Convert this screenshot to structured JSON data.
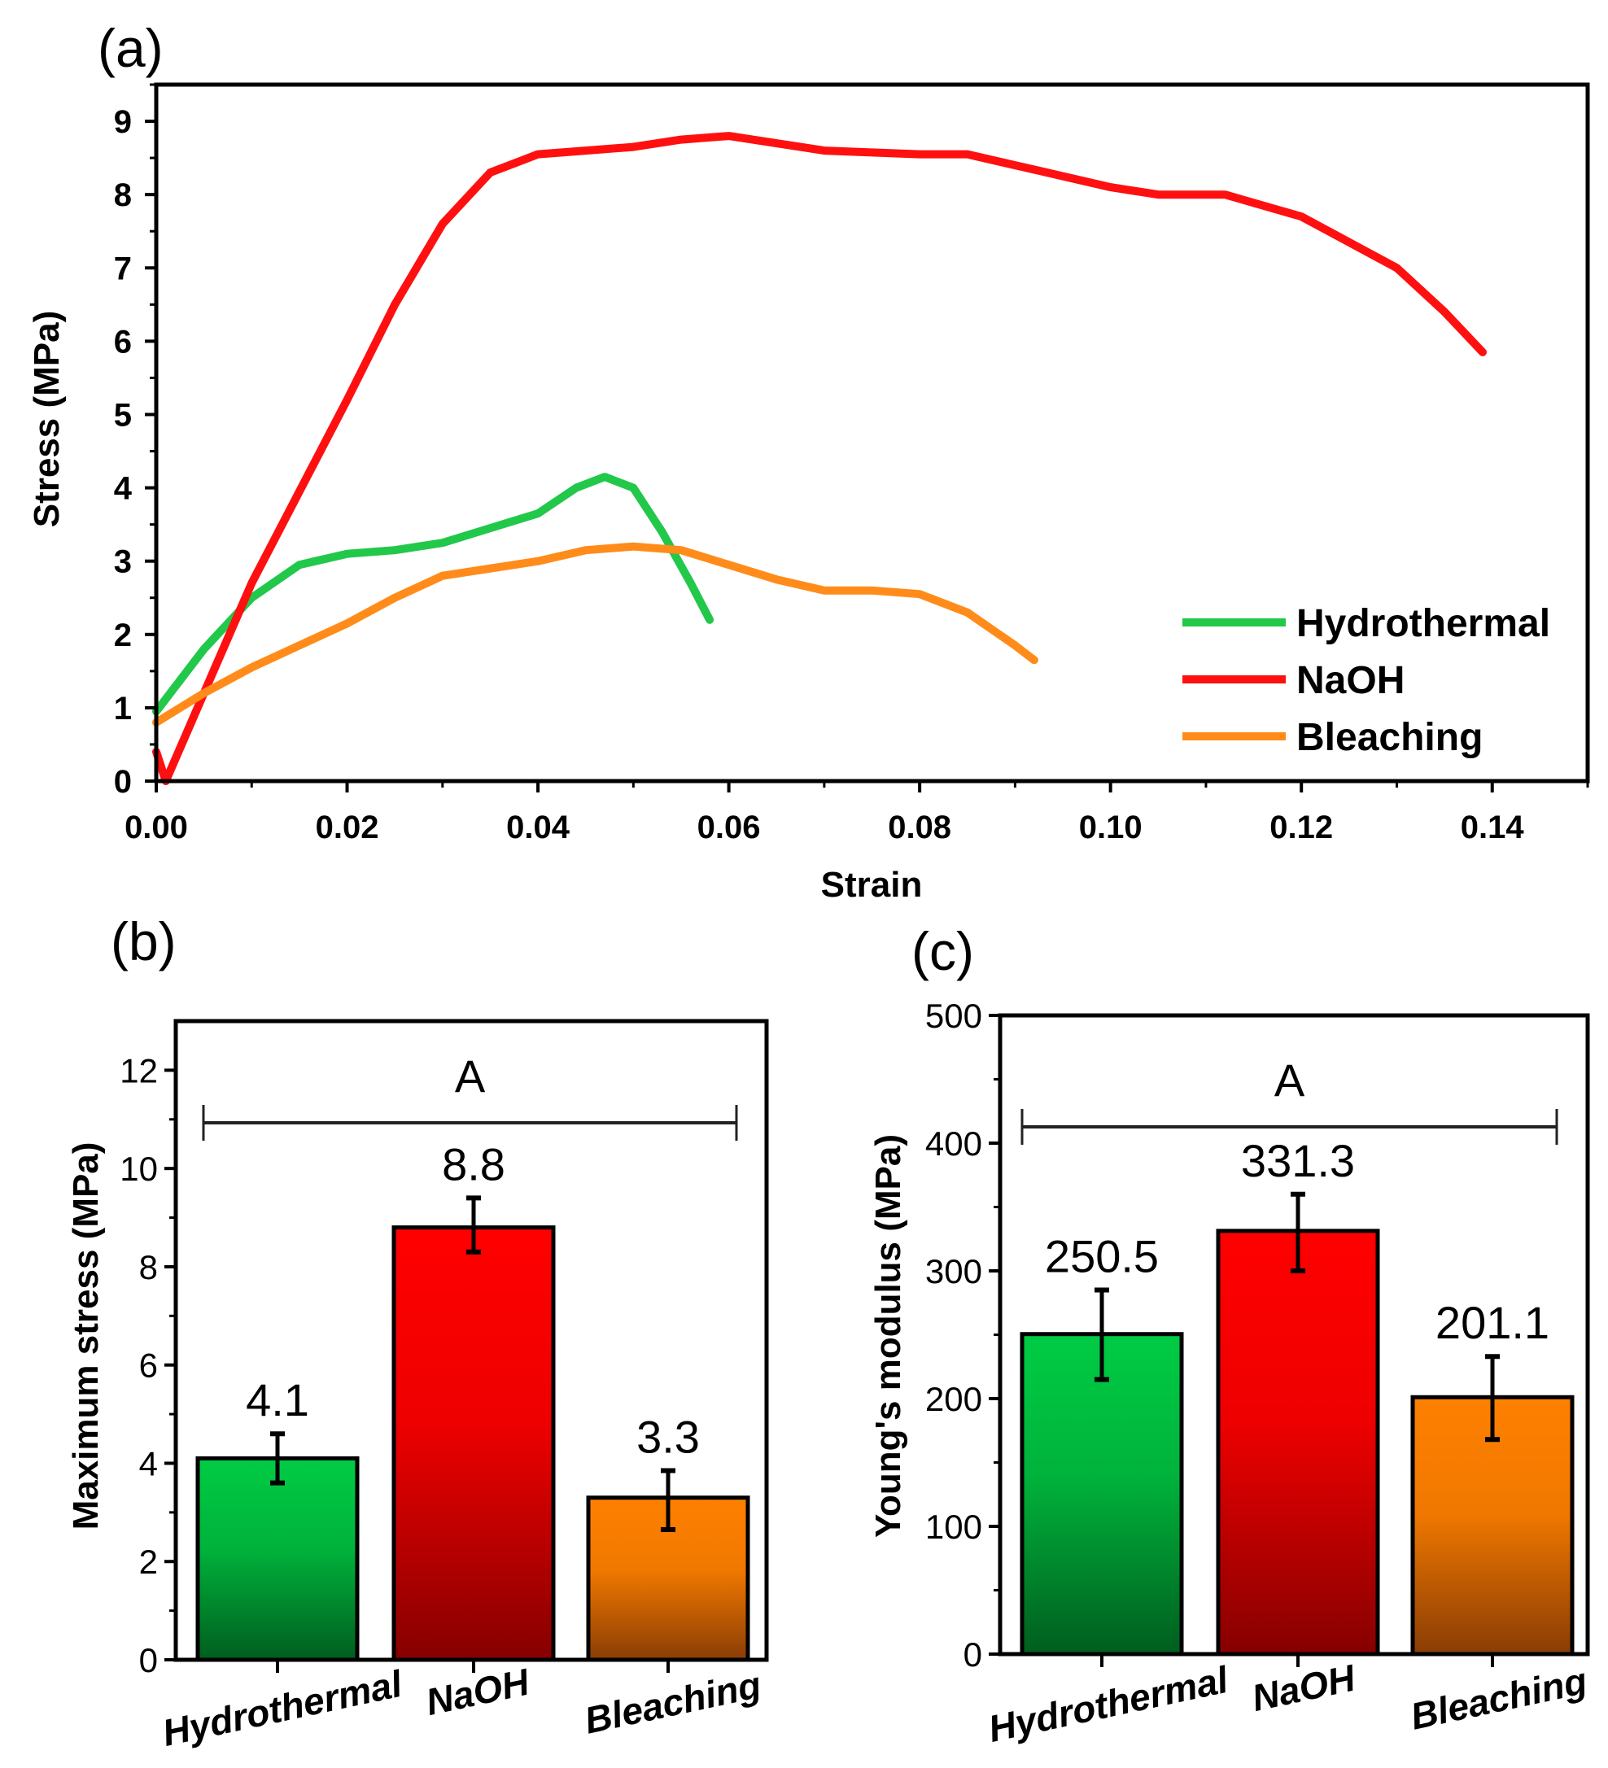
{
  "chart_data": [
    {
      "panel": "(a)",
      "type": "line",
      "title": "",
      "xlabel": "Strain",
      "ylabel": "Stress (MPa)",
      "xlim": [
        0,
        0.15
      ],
      "ylim": [
        0,
        9.5
      ],
      "xticks": [
        "0.00",
        "0.02",
        "0.04",
        "0.06",
        "0.08",
        "0.10",
        "0.12",
        "0.14"
      ],
      "yticks": [
        "0",
        "1",
        "2",
        "3",
        "4",
        "5",
        "6",
        "7",
        "8",
        "9"
      ],
      "legend_position": "bottom-right",
      "grid": false,
      "series": [
        {
          "name": "Hydrothermal",
          "color": "#22c84a",
          "x": [
            0,
            0.005,
            0.01,
            0.015,
            0.02,
            0.025,
            0.03,
            0.035,
            0.04,
            0.044,
            0.047,
            0.05,
            0.053,
            0.056,
            0.058
          ],
          "y": [
            0.95,
            1.8,
            2.5,
            2.95,
            3.1,
            3.15,
            3.25,
            3.45,
            3.65,
            4.0,
            4.15,
            4.0,
            3.4,
            2.7,
            2.2
          ]
        },
        {
          "name": "NaOH",
          "color": "#ff1010",
          "x": [
            0,
            0.001,
            0.01,
            0.02,
            0.025,
            0.03,
            0.035,
            0.04,
            0.045,
            0.05,
            0.055,
            0.06,
            0.065,
            0.07,
            0.08,
            0.085,
            0.09,
            0.1,
            0.105,
            0.112,
            0.12,
            0.13,
            0.135,
            0.139
          ],
          "y": [
            0.4,
            0,
            2.7,
            5.2,
            6.5,
            7.6,
            8.3,
            8.55,
            8.6,
            8.65,
            8.75,
            8.8,
            8.7,
            8.6,
            8.55,
            8.55,
            8.4,
            8.1,
            8.0,
            8.0,
            7.7,
            7.0,
            6.4,
            5.85
          ]
        },
        {
          "name": "Bleaching",
          "color": "#ff8c1a",
          "x": [
            0,
            0.005,
            0.01,
            0.02,
            0.025,
            0.03,
            0.035,
            0.04,
            0.045,
            0.05,
            0.055,
            0.06,
            0.065,
            0.07,
            0.075,
            0.08,
            0.085,
            0.09,
            0.092
          ],
          "y": [
            0.8,
            1.2,
            1.55,
            2.15,
            2.5,
            2.8,
            2.9,
            3.0,
            3.15,
            3.2,
            3.15,
            2.95,
            2.75,
            2.6,
            2.6,
            2.55,
            2.3,
            1.85,
            1.65
          ]
        }
      ]
    },
    {
      "panel": "(b)",
      "type": "bar",
      "xlabel": "",
      "ylabel": "Maximum stress (MPa)",
      "ylim": [
        0,
        13
      ],
      "yticks": [
        "0",
        "2",
        "4",
        "6",
        "8",
        "10",
        "12"
      ],
      "categories": [
        "Hydrothermal",
        "NaOH",
        "Bleaching"
      ],
      "values": [
        4.1,
        8.8,
        3.3
      ],
      "value_labels": [
        "4.1",
        "8.8",
        "3.3"
      ],
      "error_low": [
        3.6,
        8.3,
        2.65
      ],
      "error_high": [
        4.6,
        9.4,
        3.85
      ],
      "colors": [
        "#00cc44",
        "#ff0000",
        "#ff8000"
      ],
      "significance_label": "A"
    },
    {
      "panel": "(c)",
      "type": "bar",
      "xlabel": "",
      "ylabel": "Young's modulus (MPa)",
      "ylim": [
        0,
        500
      ],
      "yticks": [
        "0",
        "100",
        "200",
        "300",
        "400",
        "500"
      ],
      "categories": [
        "Hydrothermal",
        "NaOH",
        "Bleaching"
      ],
      "values": [
        250.5,
        331.3,
        201.1
      ],
      "value_labels": [
        "250.5",
        "331.3",
        "201.1"
      ],
      "error_low": [
        215,
        300,
        168
      ],
      "error_high": [
        285,
        360,
        233
      ],
      "colors": [
        "#00cc44",
        "#ff0000",
        "#ff8000"
      ],
      "significance_label": "A"
    }
  ]
}
